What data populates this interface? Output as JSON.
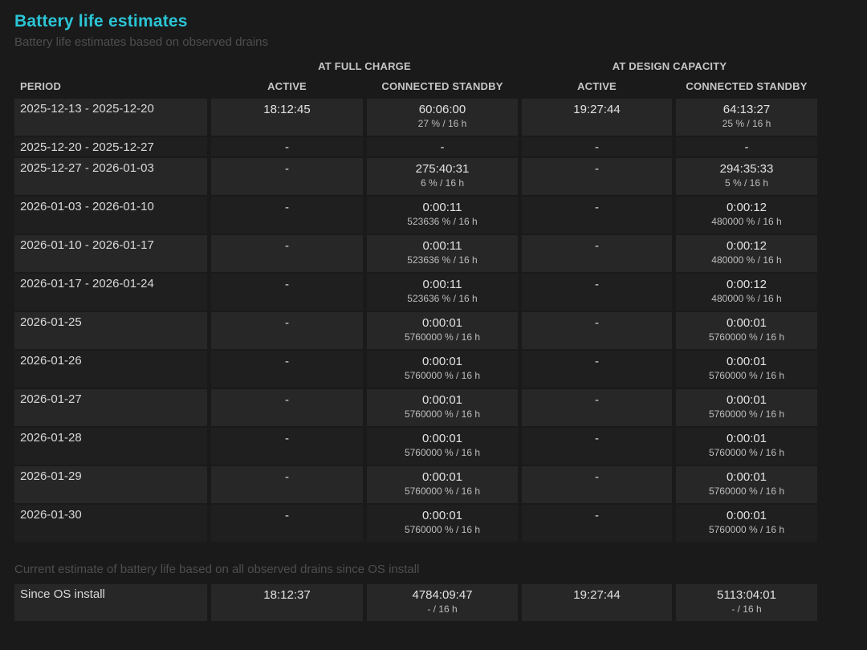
{
  "page": {
    "title": "Battery life estimates",
    "subtitle": "Battery life estimates based on observed drains",
    "footer_note": "Current estimate of battery life based on all observed drains since OS install"
  },
  "colors": {
    "accent": "#2bc5d6",
    "page_background": "#1a1a1a",
    "row_light": "#272727",
    "row_dark": "#1f1f1f"
  },
  "table": {
    "group_headers": {
      "full_charge": "AT FULL CHARGE",
      "design_capacity": "AT DESIGN CAPACITY"
    },
    "columns": {
      "period": "PERIOD",
      "fc_active": "ACTIVE",
      "fc_cs": "CONNECTED STANDBY",
      "dc_active": "ACTIVE",
      "dc_cs": "CONNECTED STANDBY"
    },
    "rows": [
      {
        "period": "2025-12-13 - 2025-12-20",
        "fc_active": "18:12:45",
        "fc_cs": "60:06:00",
        "fc_cs_sub": "27 % / 16 h",
        "dc_active": "19:27:44",
        "dc_cs": "64:13:27",
        "dc_cs_sub": "25 % / 16 h"
      },
      {
        "period": "2025-12-20 - 2025-12-27",
        "fc_active": "-",
        "fc_cs": "-",
        "fc_cs_sub": "",
        "dc_active": "-",
        "dc_cs": "-",
        "dc_cs_sub": ""
      },
      {
        "period": "2025-12-27 - 2026-01-03",
        "fc_active": "-",
        "fc_cs": "275:40:31",
        "fc_cs_sub": "6 % / 16 h",
        "dc_active": "-",
        "dc_cs": "294:35:33",
        "dc_cs_sub": "5 % / 16 h"
      },
      {
        "period": "2026-01-03 - 2026-01-10",
        "fc_active": "-",
        "fc_cs": "0:00:11",
        "fc_cs_sub": "523636 % / 16 h",
        "dc_active": "-",
        "dc_cs": "0:00:12",
        "dc_cs_sub": "480000 % / 16 h"
      },
      {
        "period": "2026-01-10 - 2026-01-17",
        "fc_active": "-",
        "fc_cs": "0:00:11",
        "fc_cs_sub": "523636 % / 16 h",
        "dc_active": "-",
        "dc_cs": "0:00:12",
        "dc_cs_sub": "480000 % / 16 h"
      },
      {
        "period": "2026-01-17 - 2026-01-24",
        "fc_active": "-",
        "fc_cs": "0:00:11",
        "fc_cs_sub": "523636 % / 16 h",
        "dc_active": "-",
        "dc_cs": "0:00:12",
        "dc_cs_sub": "480000 % / 16 h"
      },
      {
        "period": "2026-01-25",
        "fc_active": "-",
        "fc_cs": "0:00:01",
        "fc_cs_sub": "5760000 % / 16 h",
        "dc_active": "-",
        "dc_cs": "0:00:01",
        "dc_cs_sub": "5760000 % / 16 h"
      },
      {
        "period": "2026-01-26",
        "fc_active": "-",
        "fc_cs": "0:00:01",
        "fc_cs_sub": "5760000 % / 16 h",
        "dc_active": "-",
        "dc_cs": "0:00:01",
        "dc_cs_sub": "5760000 % / 16 h"
      },
      {
        "period": "2026-01-27",
        "fc_active": "-",
        "fc_cs": "0:00:01",
        "fc_cs_sub": "5760000 % / 16 h",
        "dc_active": "-",
        "dc_cs": "0:00:01",
        "dc_cs_sub": "5760000 % / 16 h"
      },
      {
        "period": "2026-01-28",
        "fc_active": "-",
        "fc_cs": "0:00:01",
        "fc_cs_sub": "5760000 % / 16 h",
        "dc_active": "-",
        "dc_cs": "0:00:01",
        "dc_cs_sub": "5760000 % / 16 h"
      },
      {
        "period": "2026-01-29",
        "fc_active": "-",
        "fc_cs": "0:00:01",
        "fc_cs_sub": "5760000 % / 16 h",
        "dc_active": "-",
        "dc_cs": "0:00:01",
        "dc_cs_sub": "5760000 % / 16 h"
      },
      {
        "period": "2026-01-30",
        "fc_active": "-",
        "fc_cs": "0:00:01",
        "fc_cs_sub": "5760000 % / 16 h",
        "dc_active": "-",
        "dc_cs": "0:00:01",
        "dc_cs_sub": "5760000 % / 16 h"
      }
    ],
    "since_os_install_row": {
      "period": "Since OS install",
      "fc_active": "18:12:37",
      "fc_cs": "4784:09:47",
      "fc_cs_sub": "- / 16 h",
      "dc_active": "19:27:44",
      "dc_cs": "5113:04:01",
      "dc_cs_sub": "- / 16 h"
    }
  }
}
